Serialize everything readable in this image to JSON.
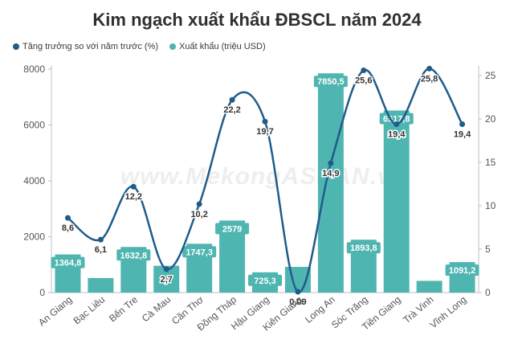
{
  "title": "Kim ngạch xuất khẩu ĐBSCL năm 2024",
  "watermark": "www.MekongASEAN.vn",
  "chart_data": {
    "type": "bar",
    "categories": [
      "An Giang",
      "Bạc Liêu",
      "Bến Tre",
      "Cà Mau",
      "Cần Thơ",
      "Đồng Tháp",
      "Hậu Giang",
      "Kiên Giang",
      "Long An",
      "Sóc Trăng",
      "Tiền Giang",
      "Trà Vinh",
      "Vĩnh Long"
    ],
    "series": [
      {
        "name": "Xuất khẩu (triệu USD)",
        "type": "bar",
        "axis": "left",
        "color": "#4fb5b0",
        "values": [
          1364.8,
          520,
          1632.8,
          960,
          1747.3,
          2579,
          725.3,
          920,
          7850.5,
          1893.8,
          6517.8,
          420,
          1091.2
        ],
        "labels": [
          "1364,8",
          "",
          "1632,8",
          "",
          "1747,3",
          "2579",
          "725,3",
          "",
          "7850,5",
          "1893,8",
          "6517,8",
          "",
          "1091,2"
        ]
      },
      {
        "name": "Tăng trưởng so với năm trước (%)",
        "type": "line",
        "axis": "right",
        "color": "#1f5c8a",
        "values": [
          8.6,
          6.1,
          12.2,
          2.7,
          10.2,
          22.2,
          19.7,
          0.09,
          14.9,
          25.6,
          19.4,
          25.8,
          19.4
        ],
        "labels": [
          "8,6",
          "6,1",
          "12,2",
          "2,7",
          "10,2",
          "22,2",
          "19,7",
          "0,09",
          "14,9",
          "25,6",
          "19,4",
          "25,8",
          "19,4"
        ]
      }
    ],
    "ylim_left": [
      0,
      8000
    ],
    "yticks_left": [
      "0",
      "2000",
      "4000",
      "6000",
      "8000"
    ],
    "ylim_right": [
      0,
      26
    ],
    "yticks_right": [
      "0",
      "5",
      "10",
      "15",
      "20",
      "25"
    ],
    "grid": false,
    "legend": "top-left"
  }
}
